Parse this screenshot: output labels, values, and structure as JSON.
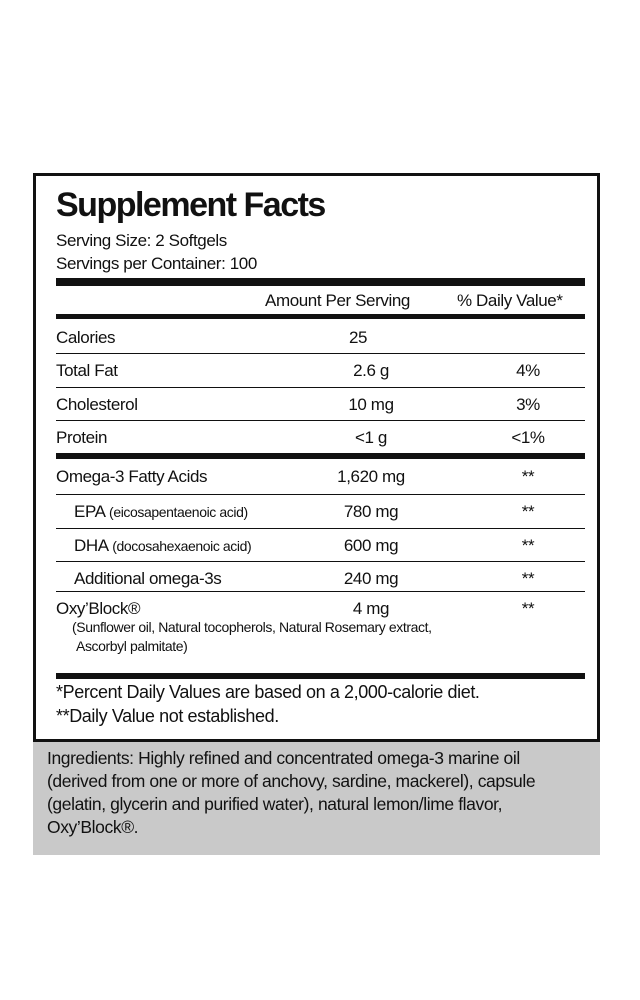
{
  "label": {
    "title": "Supplement Facts",
    "serving_size": "Serving Size: 2 Softgels",
    "servings_per_container": "Servings per Container: 100",
    "header": {
      "amount": "Amount Per Serving",
      "daily_value": "% Daily Value*"
    },
    "rows": [
      {
        "name": "Calories",
        "amount": "25"
      },
      {
        "name": "Total Fat",
        "amount": "2.6 g",
        "dv": "4%"
      },
      {
        "name": "Cholesterol",
        "amount": "10 mg",
        "dv": "3%"
      },
      {
        "name": "Protein",
        "amount": "<1 g",
        "dv": "<1%"
      },
      {
        "name": "Omega-3 Fatty Acids",
        "amount": "1,620 mg",
        "dv": "**"
      },
      {
        "name": "EPA",
        "note": "(eicosapentaenoic acid)",
        "amount": "780 mg",
        "dv": "**"
      },
      {
        "name": "DHA",
        "note": "(docosahexaenoic acid)",
        "amount": "600 mg",
        "dv": "**"
      },
      {
        "name": "Additional omega-3s",
        "amount": "240 mg",
        "dv": "**"
      },
      {
        "name": "Oxy’Block®",
        "amount": "4 mg",
        "dv": "**",
        "note_lines": [
          "(Sunflower oil, Natural tocopherols, Natural Rosemary extract,",
          "Ascorbyl palmitate)"
        ]
      }
    ],
    "footnotes": [
      "*Percent Daily Values are based on a 2,000-calorie diet.",
      "**Daily Value not established."
    ]
  },
  "ingredients": {
    "lines": [
      "Ingredients: Highly refined and concentrated omega-3 marine oil",
      "(derived from one or more of anchovy, sardine, mackerel), capsule",
      "(gelatin, glycerin and purified water), natural lemon/lime flavor,",
      "Oxy’Block®."
    ]
  }
}
